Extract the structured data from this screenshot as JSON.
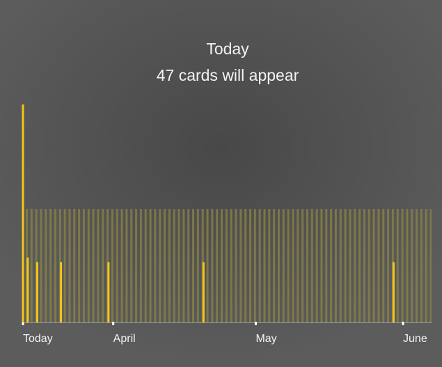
{
  "chart_data": {
    "type": "bar",
    "title": "Today",
    "subtitle": "47 cards will appear",
    "x": [
      0,
      1,
      3,
      8,
      18,
      38,
      78
    ],
    "values": [
      47,
      14,
      13,
      13,
      13,
      13,
      13
    ],
    "color": "#f5c518",
    "xlim": [
      0,
      86
    ],
    "xticks": [
      {
        "value": 0,
        "label": "Today"
      },
      {
        "value": 19,
        "label": "April"
      },
      {
        "value": 49,
        "label": "May"
      },
      {
        "value": 80,
        "label": "June"
      }
    ],
    "ylim": [
      0,
      50
    ]
  }
}
